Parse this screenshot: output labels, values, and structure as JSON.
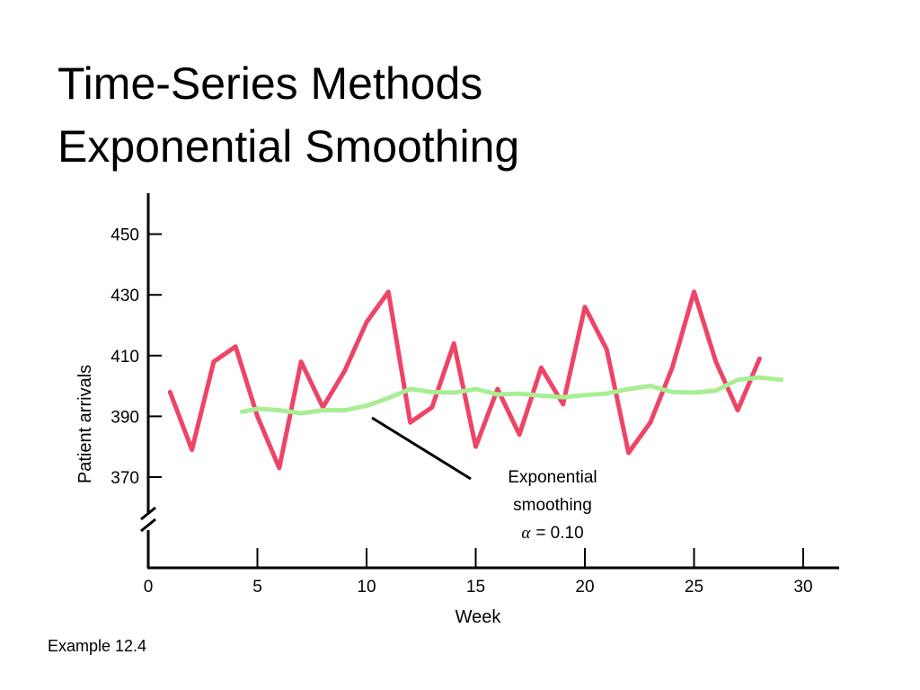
{
  "slide": {
    "title_line1": "Time-Series Methods",
    "title_line2": "Exponential Smoothing",
    "footnote": "Example 12.4"
  },
  "colors": {
    "actual": "#ee4466",
    "smoothed": "#a8ee94",
    "axis": "#000000"
  },
  "chart_data": {
    "type": "line",
    "xlabel": "Week",
    "ylabel": "Patient arrivals",
    "xlim": [
      0,
      31
    ],
    "ylim": [
      360,
      463
    ],
    "x_ticks": [
      0,
      5,
      10,
      15,
      20,
      25,
      30
    ],
    "y_ticks": [
      370,
      390,
      410,
      430,
      450
    ],
    "axis_break": true,
    "annotation": {
      "line1": "Exponential",
      "line2": "smoothing",
      "alpha_symbol": "α",
      "alpha_value": "= 0.10"
    },
    "series": [
      {
        "x": [
          1,
          2,
          3,
          4,
          5,
          6,
          7,
          8,
          9,
          10,
          11,
          12,
          13,
          14,
          15,
          16,
          17,
          18,
          19,
          20,
          21,
          22,
          23,
          24,
          25,
          26,
          27,
          28
        ],
        "values": [
          398,
          379,
          408,
          413,
          390,
          373,
          408,
          393,
          405,
          421,
          431,
          388,
          393,
          414,
          380,
          399,
          384,
          406,
          394,
          426,
          412,
          378,
          388,
          406,
          431,
          408,
          392,
          409
        ]
      },
      {
        "name": "Exponential smoothing α = 0.10",
        "x": [
          4.3,
          5,
          6,
          7,
          8,
          9,
          10,
          11,
          12,
          13,
          14,
          15,
          16,
          17,
          18,
          19,
          20,
          21,
          22,
          23,
          24,
          25,
          26,
          27,
          28,
          29
        ],
        "values": [
          391.5,
          392.5,
          392,
          391,
          392,
          392,
          393.5,
          396,
          399,
          398,
          397.8,
          399,
          397.2,
          397.5,
          396.8,
          396.3,
          397,
          397.5,
          399,
          400,
          398,
          397.8,
          398.5,
          402,
          402.8,
          402
        ]
      }
    ]
  }
}
